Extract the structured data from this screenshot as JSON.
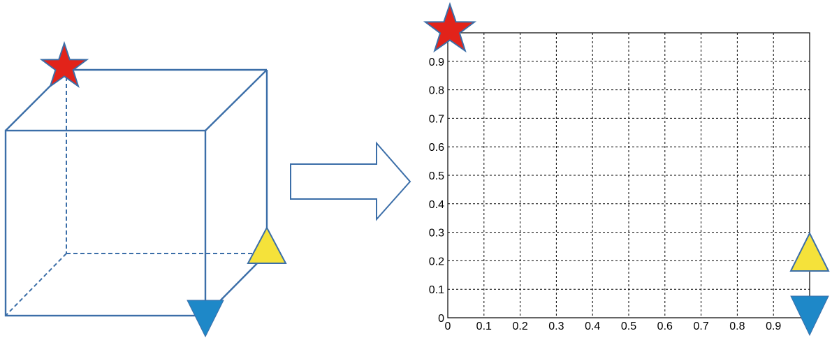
{
  "colors": {
    "cube_edge": "#3b6ea8",
    "star_fill": "#e2231a",
    "star_stroke": "#3b6ea8",
    "triangle_up_fill": "#f5e23a",
    "triangle_down_fill": "#1e88c8",
    "arrow_stroke": "#3b6ea8"
  },
  "icons": {
    "marker_1": "red-star",
    "marker_2": "yellow-triangle-up",
    "marker_3": "blue-triangle-down",
    "transform": "right-arrow"
  },
  "chart_data": {
    "type": "grid",
    "xlim": [
      0,
      1
    ],
    "ylim": [
      0,
      1
    ],
    "grid": true,
    "x_ticks": [
      "0",
      "0.1",
      "0.2",
      "0.3",
      "0.4",
      "0.5",
      "0.6",
      "0.7",
      "0.8",
      "0.9"
    ],
    "y_ticks": [
      "0",
      "0.1",
      "0.2",
      "0.3",
      "0.4",
      "0.5",
      "0.6",
      "0.7",
      "0.8",
      "0.9"
    ],
    "x_values": [
      0,
      0.1,
      0.2,
      0.3,
      0.4,
      0.5,
      0.6,
      0.7,
      0.8,
      0.9
    ],
    "y_values": [
      0,
      0.1,
      0.2,
      0.3,
      0.4,
      0.5,
      0.6,
      0.7,
      0.8,
      0.9
    ],
    "markers": [
      {
        "shape": "star",
        "x": 0,
        "y": 1
      },
      {
        "shape": "triangle-up",
        "x": 1,
        "y": 0.25
      },
      {
        "shape": "triangle-down",
        "x": 1,
        "y": 0
      }
    ]
  }
}
